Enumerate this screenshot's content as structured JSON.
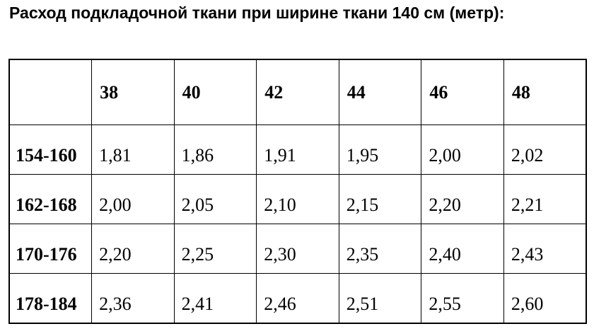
{
  "page": {
    "title": "Расход подкладочной ткани при ширине ткани 140 см (метр):"
  },
  "table": {
    "column_headers": [
      "",
      "38",
      "40",
      "42",
      "44",
      "46",
      "48"
    ],
    "rows": [
      {
        "label": "154-160",
        "values": [
          "1,81",
          "1,86",
          "1,91",
          "1,95",
          "2,00",
          "2,02"
        ]
      },
      {
        "label": "162-168",
        "values": [
          "2,00",
          "2,05",
          "2,10",
          "2,15",
          "2,20",
          "2,21"
        ]
      },
      {
        "label": "170-176",
        "values": [
          "2,20",
          "2,25",
          "2,30",
          "2,35",
          "2,40",
          "2,43"
        ]
      },
      {
        "label": "178-184",
        "values": [
          "2,36",
          "2,41",
          "2,46",
          "2,51",
          "2,55",
          "2,60"
        ]
      }
    ],
    "colors": {
      "border": "#000000",
      "text": "#000000",
      "background": "#ffffff"
    }
  }
}
